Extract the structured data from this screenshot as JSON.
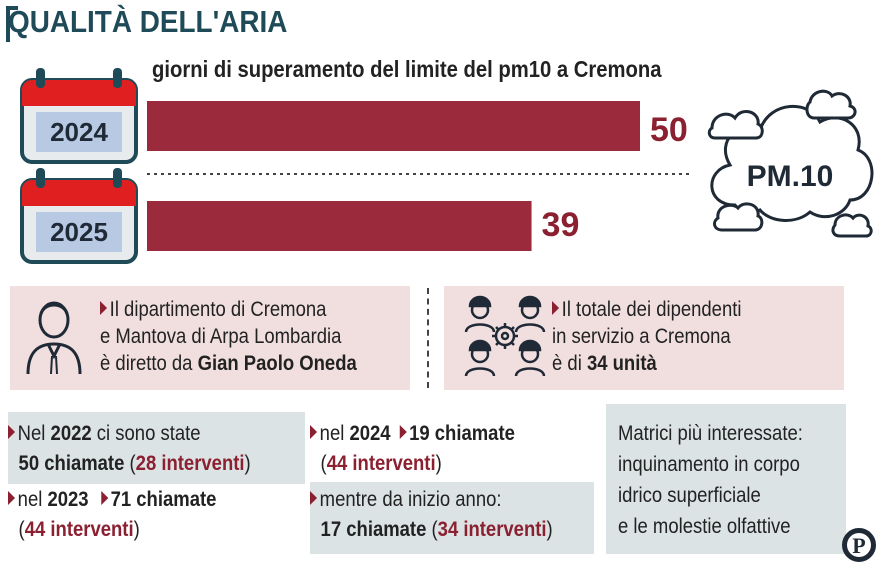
{
  "header": {
    "title": "QUALITÀ DELL'ARIA",
    "subtitle": "giorni di superamento del limite del pm10 a Cremona"
  },
  "chart_data": {
    "type": "bar",
    "orientation": "horizontal",
    "categories": [
      "2024",
      "2025"
    ],
    "values": [
      50,
      39
    ],
    "title": "giorni di superamento del limite del pm10 a Cremona",
    "bar_color": "#9b2a3c",
    "label_color": "#8a2030"
  },
  "cloud": {
    "label": "PM.10"
  },
  "info_left": {
    "line1": "Il dipartimento di Cremona",
    "line2": "e Mantova di Arpa Lombardia",
    "line3_pre": "è diretto da ",
    "line3_bold": "Gian Paolo Oneda"
  },
  "info_right": {
    "line1": "Il totale dei dipendenti",
    "line2": "in servizio a Cremona",
    "line3_pre": "è di ",
    "line3_bold": "34 unità"
  },
  "stats": {
    "a_pre": "Nel ",
    "a_year": "2022",
    "a_mid": " ci sono state",
    "a_calls": "50 chiamate",
    "a_open": " (",
    "a_int": "28 interventi",
    "a_close": ")",
    "b_pre": "nel ",
    "b_year": "2023",
    "b_calls": "71 chiamate",
    "b_open": "(",
    "b_int": "44 interventi",
    "b_close": ")",
    "c_pre": "nel ",
    "c_year": "2024",
    "c_calls": "19 chiamate",
    "c_open": "(",
    "c_int": "44 interventi",
    "c_close": ")",
    "d_line": "mentre da inizio anno:",
    "d_calls": "17 chiamate",
    "d_open": " (",
    "d_int": "34 interventi",
    "d_close": ")"
  },
  "matrici": {
    "line1": "Matrici più interessate:",
    "line2": "inquinamento in corpo",
    "line3": "idrico superficiale",
    "line4": "e le molestie olfattive"
  },
  "logo": {
    "letter": "P"
  },
  "colors": {
    "accent": "#8a2030",
    "title": "#1f4a57",
    "pink_box": "#f1dfe0",
    "grey_box": "#dce3e5"
  }
}
